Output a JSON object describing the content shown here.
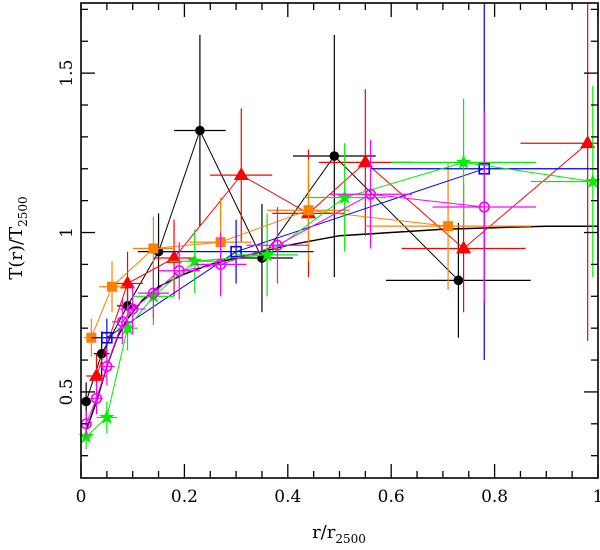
{
  "chart_data": {
    "type": "scatter",
    "title": "",
    "xlabel": {
      "main": "r/r",
      "sub": "2500"
    },
    "ylabel": {
      "main": "T(r)/T",
      "sub": "2500"
    },
    "xlim": [
      0,
      1
    ],
    "ylim": [
      0.23,
      1.72
    ],
    "x_ticks": [
      {
        "value": 0,
        "label": "0"
      },
      {
        "value": 0.2,
        "label": "0.2"
      },
      {
        "value": 0.4,
        "label": "0.4"
      },
      {
        "value": 0.6,
        "label": "0.6"
      },
      {
        "value": 0.8,
        "label": "0.8"
      },
      {
        "value": 1,
        "label": "1"
      }
    ],
    "x_minor_step": 0.05,
    "y_ticks": [
      {
        "value": 0.5,
        "label": "0.5"
      },
      {
        "value": 1,
        "label": "1"
      },
      {
        "value": 1.5,
        "label": "1.5"
      }
    ],
    "y_minor_step": 0.1,
    "grid": false,
    "model_curve": {
      "color": "#000000",
      "points": [
        [
          0.01,
          0.38
        ],
        [
          0.03,
          0.47
        ],
        [
          0.05,
          0.58
        ],
        [
          0.07,
          0.67
        ],
        [
          0.09,
          0.73
        ],
        [
          0.12,
          0.79
        ],
        [
          0.15,
          0.83
        ],
        [
          0.2,
          0.87
        ],
        [
          0.25,
          0.9
        ],
        [
          0.3,
          0.92
        ],
        [
          0.35,
          0.94
        ],
        [
          0.4,
          0.96
        ],
        [
          0.5,
          0.99
        ],
        [
          0.6,
          1.0
        ],
        [
          0.7,
          1.01
        ],
        [
          0.8,
          1.015
        ],
        [
          0.9,
          1.02
        ],
        [
          1.0,
          1.02
        ]
      ]
    },
    "series": [
      {
        "color": "#000000",
        "marker": "circle-filled",
        "points": [
          {
            "x": 0.01,
            "y": 0.47,
            "xerr": 0.01,
            "yerr": 0.06
          },
          {
            "x": 0.04,
            "y": 0.62,
            "xerr": 0.015,
            "yerr": 0.07
          },
          {
            "x": 0.09,
            "y": 0.77,
            "xerr": 0.02,
            "yerr": 0.09
          },
          {
            "x": 0.15,
            "y": 0.94,
            "xerr": 0.04,
            "yerr": 0.12
          },
          {
            "x": 0.23,
            "y": 1.32,
            "xerr": 0.05,
            "yerr": 0.3
          },
          {
            "x": 0.35,
            "y": 0.92,
            "xerr": 0.06,
            "yerr": 0.17
          },
          {
            "x": 0.49,
            "y": 1.24,
            "xerr": 0.08,
            "yerr": 0.38
          },
          {
            "x": 0.73,
            "y": 0.85,
            "xerr": 0.14,
            "yerr": 0.18
          }
        ]
      },
      {
        "color": "#ff0000",
        "marker": "triangle-filled",
        "points": [
          {
            "x": 0.03,
            "y": 0.55,
            "xerr": 0.02,
            "yerr": 0.07
          },
          {
            "x": 0.09,
            "y": 0.84,
            "xerr": 0.03,
            "yerr": 0.1
          },
          {
            "x": 0.18,
            "y": 0.92,
            "xerr": 0.04,
            "yerr": 0.12
          },
          {
            "x": 0.31,
            "y": 1.18,
            "xerr": 0.06,
            "yerr": 0.21
          },
          {
            "x": 0.44,
            "y": 1.06,
            "xerr": 0.07,
            "yerr": 0.2
          },
          {
            "x": 0.55,
            "y": 1.22,
            "xerr": 0.09,
            "yerr": 0.23
          },
          {
            "x": 0.74,
            "y": 0.95,
            "xerr": 0.12,
            "yerr": 0.2
          },
          {
            "x": 0.98,
            "y": 1.28,
            "xerr": 0.13,
            "yerr": 0.62
          }
        ]
      },
      {
        "color": "#ff8000",
        "marker": "square-filled",
        "points": [
          {
            "x": 0.02,
            "y": 0.67,
            "xerr": 0.015,
            "yerr": 0.06
          },
          {
            "x": 0.06,
            "y": 0.83,
            "xerr": 0.025,
            "yerr": 0.08
          },
          {
            "x": 0.14,
            "y": 0.95,
            "xerr": 0.04,
            "yerr": 0.1
          },
          {
            "x": 0.27,
            "y": 0.97,
            "xerr": 0.06,
            "yerr": 0.14
          },
          {
            "x": 0.44,
            "y": 1.07,
            "xerr": 0.08,
            "yerr": 0.16
          },
          {
            "x": 0.71,
            "y": 1.02,
            "xerr": 0.16,
            "yerr": 0.2
          }
        ]
      },
      {
        "color": "#0000ff",
        "marker": "square-open",
        "points": [
          {
            "x": 0.05,
            "y": 0.67,
            "xerr": 0.03,
            "yerr": 0.06
          },
          {
            "x": 0.3,
            "y": 0.94,
            "xerr": 0.15,
            "yerr": 0.1
          },
          {
            "x": 0.78,
            "y": 1.2,
            "xerr": 0.22,
            "yerr": 0.6
          }
        ]
      },
      {
        "color": "#00ee00",
        "marker": "star-filled",
        "points": [
          {
            "x": 0.01,
            "y": 0.36,
            "xerr": 0.01,
            "yerr": 0.04
          },
          {
            "x": 0.05,
            "y": 0.42,
            "xerr": 0.02,
            "yerr": 0.05
          },
          {
            "x": 0.09,
            "y": 0.7,
            "xerr": 0.02,
            "yerr": 0.07
          },
          {
            "x": 0.14,
            "y": 0.8,
            "xerr": 0.04,
            "yerr": 0.09
          },
          {
            "x": 0.22,
            "y": 0.91,
            "xerr": 0.05,
            "yerr": 0.1
          },
          {
            "x": 0.36,
            "y": 0.93,
            "xerr": 0.06,
            "yerr": 0.13
          },
          {
            "x": 0.51,
            "y": 1.11,
            "xerr": 0.08,
            "yerr": 0.17
          },
          {
            "x": 0.74,
            "y": 1.22,
            "xerr": 0.14,
            "yerr": 0.2
          },
          {
            "x": 0.99,
            "y": 1.16,
            "xerr": 0.12,
            "yerr": 0.3
          }
        ]
      },
      {
        "color": "#ff00ff",
        "marker": "circle-open",
        "points": [
          {
            "x": 0.01,
            "y": 0.4,
            "xerr": 0.008,
            "yerr": 0.04
          },
          {
            "x": 0.03,
            "y": 0.48,
            "xerr": 0.012,
            "yerr": 0.05
          },
          {
            "x": 0.05,
            "y": 0.58,
            "xerr": 0.015,
            "yerr": 0.06
          },
          {
            "x": 0.08,
            "y": 0.72,
            "xerr": 0.02,
            "yerr": 0.07
          },
          {
            "x": 0.1,
            "y": 0.76,
            "xerr": 0.025,
            "yerr": 0.08
          },
          {
            "x": 0.14,
            "y": 0.81,
            "xerr": 0.03,
            "yerr": 0.08
          },
          {
            "x": 0.19,
            "y": 0.88,
            "xerr": 0.04,
            "yerr": 0.09
          },
          {
            "x": 0.27,
            "y": 0.9,
            "xerr": 0.05,
            "yerr": 0.1
          },
          {
            "x": 0.38,
            "y": 0.96,
            "xerr": 0.06,
            "yerr": 0.12
          },
          {
            "x": 0.56,
            "y": 1.12,
            "xerr": 0.08,
            "yerr": 0.17
          },
          {
            "x": 0.78,
            "y": 1.08,
            "xerr": 0.1,
            "yerr": 0.3
          }
        ]
      }
    ]
  }
}
